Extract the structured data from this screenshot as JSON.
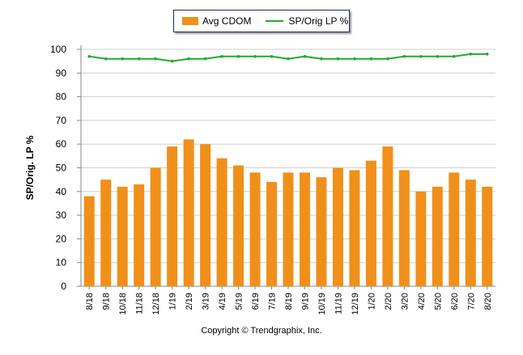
{
  "chart_data": {
    "type": "bar",
    "categories": [
      "8/18",
      "9/18",
      "10/18",
      "11/18",
      "12/18",
      "1/19",
      "2/19",
      "3/19",
      "4/19",
      "5/19",
      "6/19",
      "7/19",
      "8/19",
      "9/19",
      "10/19",
      "11/19",
      "12/19",
      "1/20",
      "2/20",
      "3/20",
      "4/20",
      "5/20",
      "6/20",
      "7/20",
      "8/20"
    ],
    "series": [
      {
        "name": "Avg CDOM",
        "type": "bar",
        "color": "#f0901a",
        "values": [
          38,
          45,
          42,
          43,
          50,
          59,
          62,
          60,
          54,
          51,
          48,
          44,
          48,
          48,
          46,
          50,
          49,
          53,
          59,
          49,
          40,
          42,
          48,
          45,
          42
        ]
      },
      {
        "name": "SP/Orig LP %",
        "type": "line",
        "color": "#22aa33",
        "values": [
          97,
          96,
          96,
          96,
          96,
          95,
          96,
          96,
          97,
          97,
          97,
          97,
          96,
          97,
          96,
          96,
          96,
          96,
          96,
          97,
          97,
          97,
          97,
          98,
          98
        ]
      }
    ],
    "ylabel": "SP/Orig. LP %",
    "xlabel": "",
    "ylim": [
      0,
      100
    ],
    "yticks": [
      0,
      10,
      20,
      30,
      40,
      50,
      60,
      70,
      80,
      90,
      100
    ],
    "grid": true,
    "legend": "top-center"
  },
  "footer": "Copyright © Trendgraphix, Inc."
}
